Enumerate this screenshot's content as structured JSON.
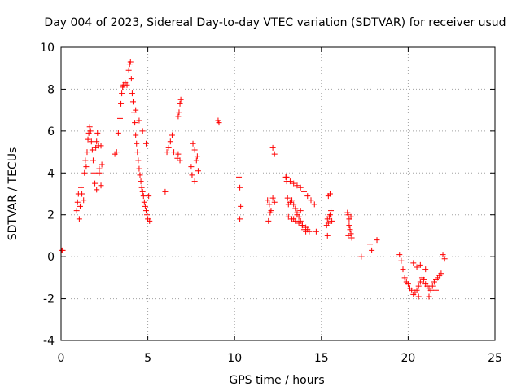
{
  "chart_data": {
    "type": "scatter",
    "title": "Day 004 of 2023, Sidereal Day-to-day VTEC variation (SDTVAR) for receiver usud",
    "xlabel": "GPS time / hours",
    "ylabel": "SDTVAR / TECUs",
    "xlim": [
      0,
      25
    ],
    "ylim": [
      -4,
      10
    ],
    "xticks": [
      0,
      5,
      10,
      15,
      20,
      25
    ],
    "yticks": [
      -4,
      -2,
      0,
      2,
      4,
      6,
      8,
      10
    ],
    "grid": true,
    "marker": "+",
    "color": "#ff0000",
    "series": [
      {
        "name": "SDTVAR",
        "x": [
          0.05,
          0.1,
          0.9,
          0.95,
          1.0,
          1.05,
          1.1,
          1.15,
          1.2,
          1.3,
          1.35,
          1.4,
          1.45,
          1.5,
          1.55,
          1.6,
          1.65,
          1.7,
          1.75,
          1.8,
          1.85,
          1.9,
          2.0,
          2.05,
          2.1,
          2.15,
          2.2,
          2.3,
          2.35,
          1.95,
          2.05,
          2.2,
          2.3,
          3.1,
          3.2,
          3.3,
          3.4,
          3.45,
          3.5,
          3.55,
          3.6,
          3.7,
          3.8,
          3.9,
          3.95,
          4.0,
          4.05,
          4.1,
          4.15,
          4.2,
          4.25,
          4.3,
          4.35,
          4.4,
          4.45,
          4.5,
          4.55,
          4.6,
          4.65,
          4.7,
          4.75,
          4.8,
          4.85,
          4.9,
          4.95,
          5.0,
          5.05,
          5.1,
          4.3,
          4.5,
          4.7,
          4.9,
          6.0,
          6.1,
          6.2,
          6.3,
          6.4,
          6.5,
          6.7,
          6.75,
          6.8,
          6.85,
          6.9,
          6.75,
          6.85,
          7.5,
          7.6,
          7.7,
          7.8,
          7.85,
          7.9,
          7.55,
          7.7,
          9.05,
          9.1,
          10.25,
          10.3,
          10.35,
          10.3,
          11.9,
          12.0,
          12.1,
          12.2,
          12.3,
          12.2,
          12.3,
          11.95,
          12.05,
          12.95,
          13.0,
          13.05,
          13.1,
          13.2,
          13.3,
          13.4,
          13.5,
          13.6,
          13.7,
          13.8,
          13.9,
          14.0,
          14.1,
          13.1,
          13.3,
          13.5,
          13.7,
          13.9,
          14.1,
          14.2,
          14.3,
          13.0,
          13.2,
          13.4,
          13.6,
          13.8,
          14.0,
          14.2,
          14.4,
          14.6,
          13.4,
          13.6,
          13.8,
          14.7,
          15.3,
          15.35,
          15.4,
          15.45,
          15.5,
          15.55,
          15.6,
          15.4,
          15.5,
          15.35,
          16.5,
          16.55,
          16.6,
          16.65,
          16.7,
          16.75,
          16.6,
          16.7,
          16.55,
          17.3,
          17.8,
          17.9,
          18.2,
          19.5,
          19.6,
          19.7,
          19.8,
          19.9,
          20.0,
          20.1,
          20.2,
          20.3,
          20.4,
          20.5,
          20.6,
          20.7,
          20.8,
          20.9,
          21.0,
          21.1,
          21.2,
          21.3,
          21.4,
          21.5,
          21.6,
          21.7,
          21.8,
          21.9,
          22.0,
          22.1,
          20.3,
          20.5,
          20.7,
          21.0,
          21.2,
          20.6,
          21.6
        ],
        "y": [
          0.3,
          0.3,
          2.2,
          2.6,
          3.0,
          1.8,
          2.4,
          3.3,
          3.0,
          2.7,
          4.0,
          4.6,
          4.3,
          5.0,
          5.6,
          5.9,
          6.2,
          6.0,
          5.5,
          5.1,
          4.6,
          4.0,
          5.2,
          5.5,
          5.9,
          5.3,
          4.2,
          5.3,
          4.4,
          3.5,
          3.2,
          4.0,
          3.4,
          4.9,
          5.0,
          5.9,
          6.6,
          7.3,
          7.8,
          8.1,
          8.2,
          8.3,
          8.2,
          8.9,
          9.2,
          9.3,
          8.5,
          7.8,
          7.4,
          6.9,
          6.4,
          5.8,
          5.4,
          5.0,
          4.6,
          4.2,
          3.9,
          3.6,
          3.3,
          3.1,
          2.9,
          2.6,
          2.4,
          2.2,
          2.0,
          1.8,
          2.9,
          1.7,
          7.0,
          6.5,
          6.0,
          5.4,
          3.1,
          5.0,
          5.2,
          5.5,
          5.8,
          5.0,
          4.7,
          6.7,
          6.9,
          7.3,
          7.5,
          4.9,
          4.6,
          4.3,
          5.4,
          5.1,
          4.6,
          4.8,
          4.1,
          3.9,
          3.6,
          6.5,
          6.4,
          3.8,
          3.3,
          2.4,
          1.8,
          2.7,
          2.5,
          2.2,
          2.8,
          2.6,
          5.2,
          4.9,
          1.7,
          2.1,
          3.8,
          3.6,
          2.8,
          2.5,
          2.6,
          2.7,
          2.5,
          2.3,
          2.1,
          1.9,
          1.7,
          1.5,
          1.3,
          1.2,
          1.9,
          1.8,
          1.7,
          1.6,
          1.5,
          1.4,
          1.3,
          1.2,
          3.8,
          3.6,
          3.5,
          3.4,
          3.3,
          3.1,
          2.9,
          2.7,
          2.5,
          1.8,
          2.0,
          2.2,
          1.2,
          1.5,
          1.8,
          1.6,
          1.9,
          2.0,
          2.2,
          1.7,
          2.9,
          3.0,
          1.0,
          2.1,
          2.0,
          1.8,
          1.3,
          1.1,
          0.9,
          1.5,
          1.9,
          1.0,
          0.0,
          0.6,
          0.3,
          0.8,
          0.1,
          -0.2,
          -0.6,
          -1.0,
          -1.2,
          -1.3,
          -1.5,
          -1.6,
          -1.8,
          -1.7,
          -1.6,
          -1.4,
          -1.2,
          -1.0,
          -1.1,
          -1.3,
          -1.4,
          -1.5,
          -1.6,
          -1.4,
          -1.2,
          -1.1,
          -1.0,
          -0.9,
          -0.8,
          0.1,
          -0.1,
          -0.3,
          -0.5,
          -0.4,
          -0.6,
          -1.9,
          -1.9,
          -1.6
        ]
      }
    ]
  }
}
